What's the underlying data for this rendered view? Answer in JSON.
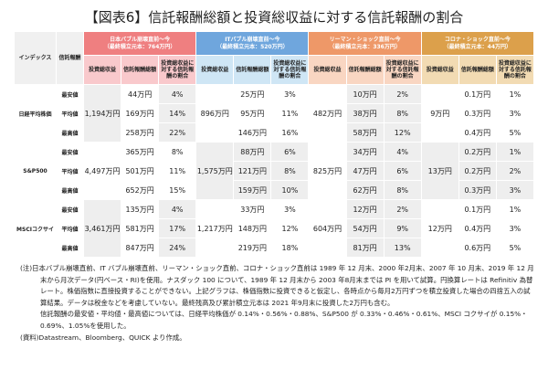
{
  "title": "【図表6】信託報酬総額と投資総収益に対する信託報酬の割合",
  "header": {
    "index": "インデックス",
    "fee": "信託報酬",
    "groups": [
      {
        "name": "日本バブル崩壊直前～今",
        "principal": "（最終積立元本：764万円）",
        "color": "#ef7f80"
      },
      {
        "name": "ITバブル崩壊直前～今",
        "principal": "（最終積立元本：520万円）",
        "color": "#6fa6dd"
      },
      {
        "name": "リーマン・ショック直前～今",
        "principal": "（最終積立元本：336万円）",
        "color": "#ee9868"
      },
      {
        "name": "コロナ・ショック直前～今",
        "principal": "（最終積立元本：44万円）",
        "color": "#dca04b"
      }
    ],
    "sub": [
      "投資総収益",
      "信託報酬総額",
      "投資総収益に対する信託報酬の割合"
    ]
  },
  "rows": [
    {
      "index": "日経平均株価",
      "income": [
        "1,194万円",
        "896万円",
        "482万円",
        "9万円"
      ],
      "levels": [
        {
          "fee": "最安値",
          "vals": [
            [
              "44万円",
              "4%"
            ],
            [
              "25万円",
              "3%"
            ],
            [
              "10万円",
              "2%"
            ],
            [
              "0.1万円",
              "1%"
            ]
          ]
        },
        {
          "fee": "平均値",
          "vals": [
            [
              "169万円",
              "14%"
            ],
            [
              "95万円",
              "11%"
            ],
            [
              "38万円",
              "8%"
            ],
            [
              "0.3万円",
              "3%"
            ]
          ]
        },
        {
          "fee": "最高値",
          "vals": [
            [
              "258万円",
              "22%"
            ],
            [
              "146万円",
              "16%"
            ],
            [
              "58万円",
              "12%"
            ],
            [
              "0.4万円",
              "5%"
            ]
          ]
        }
      ]
    },
    {
      "index": "S&P500",
      "income": [
        "4,497万円",
        "1,575万円",
        "825万円",
        "13万円"
      ],
      "levels": [
        {
          "fee": "最安値",
          "vals": [
            [
              "365万円",
              "8%"
            ],
            [
              "88万円",
              "6%"
            ],
            [
              "34万円",
              "4%"
            ],
            [
              "0.2万円",
              "1%"
            ]
          ]
        },
        {
          "fee": "平均値",
          "vals": [
            [
              "501万円",
              "11%"
            ],
            [
              "121万円",
              "8%"
            ],
            [
              "47万円",
              "6%"
            ],
            [
              "0.2万円",
              "2%"
            ]
          ]
        },
        {
          "fee": "最高値",
          "vals": [
            [
              "652万円",
              "15%"
            ],
            [
              "159万円",
              "10%"
            ],
            [
              "62万円",
              "8%"
            ],
            [
              "0.3万円",
              "3%"
            ]
          ]
        }
      ]
    },
    {
      "index": "MSCIコクサイ",
      "income": [
        "3,461万円",
        "1,217万円",
        "604万円",
        "12万円"
      ],
      "levels": [
        {
          "fee": "最安値",
          "vals": [
            [
              "135万円",
              "4%"
            ],
            [
              "33万円",
              "3%"
            ],
            [
              "12万円",
              "2%"
            ],
            [
              "0.1万円",
              "1%"
            ]
          ]
        },
        {
          "fee": "平均値",
          "vals": [
            [
              "581万円",
              "17%"
            ],
            [
              "148万円",
              "12%"
            ],
            [
              "54万円",
              "9%"
            ],
            [
              "0.4万円",
              "3%"
            ]
          ]
        },
        {
          "fee": "最高値",
          "vals": [
            [
              "847万円",
              "24%"
            ],
            [
              "219万円",
              "18%"
            ],
            [
              "81万円",
              "13%"
            ],
            [
              "0.6万円",
              "5%"
            ]
          ]
        }
      ]
    }
  ],
  "notes": {
    "note1": "(注)日本バブル崩壊直前、IT バブル崩壊直前、リーマン・ショック直前、コロナ・ショック直前は 1989 年 12 月末、2000 年2月末、2007 年 10 月末、2019 年 12 月末から月次データ(円ベース・RI)を使用。ナスダック 100 について、1989 年 12 月末から 2003 年8月末までは PI を用いて試算。円換算レートは Refinitiv 為替レート。株価指数に直接投資することができない。上記グラフは、株価指数に投資できると仮定し、各時点から毎月2万円ずつを積立投資した場合の四捨五入の試算結果。データは税金などを考慮していない。最終残高及び累計積立元本は 2021 年9月末に投資した2万円も含む。",
    "note2": "信託報酬の最安値・平均値・最高値については、日経平均株価が 0.14%・0.56%・0.88%、S&P500 が 0.33%・0.46%・0.61%、MSCI コクサイが 0.15%・0.69%、1.05%を使用した。",
    "source": "(資料)Datastream、Bloomberg、QUICK より作成。"
  }
}
